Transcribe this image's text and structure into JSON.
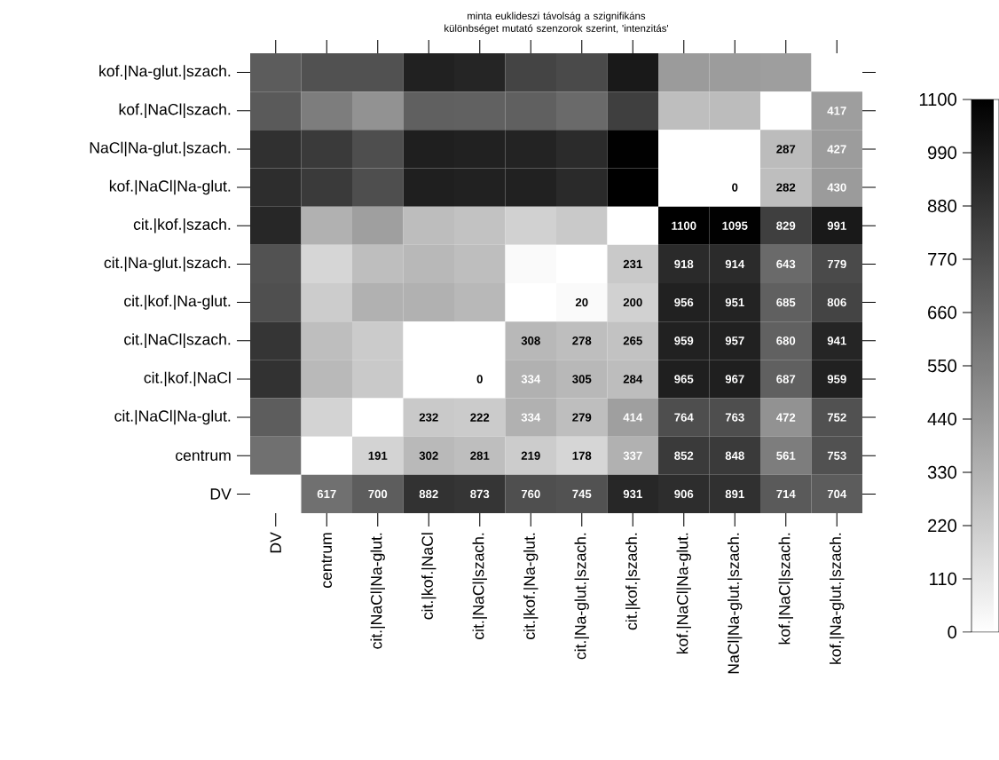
{
  "chart_data": {
    "type": "heatmap",
    "title": "minta euklideszi távolság a szignifikáns különbséget mutató szenzorok szerint, 'intenzitás'",
    "categories": [
      "DV",
      "centrum",
      "cit.|NaCl|Na-glut.",
      "cit.|kof.|NaCl",
      "cit.|NaCl|szach.",
      "cit.|kof.|Na-glut.",
      "cit.|Na-glut.|szach.",
      "cit.|kof.|szach.",
      "kof.|NaCl|Na-glut.",
      "NaCl|Na-glut.|szach.",
      "kof.|NaCl|szach.",
      "kof.|Na-glut.|szach."
    ],
    "y_categories": [
      "kof.|Na-glut.|szach.",
      "kof.|NaCl|szach.",
      "NaCl|Na-glut.|szach.",
      "kof.|NaCl|Na-glut.",
      "cit.|kof.|szach.",
      "cit.|Na-glut.|szach.",
      "cit.|kof.|Na-glut.",
      "cit.|NaCl|szach.",
      "cit.|kof.|NaCl",
      "cit.|NaCl|Na-glut.",
      "centrum",
      "DV"
    ],
    "cells": [
      [
        704,
        753,
        752,
        959,
        941,
        806,
        779,
        991,
        430,
        427,
        417,
        0
      ],
      [
        714,
        561,
        472,
        687,
        680,
        685,
        643,
        829,
        282,
        287,
        0,
        417
      ],
      [
        891,
        848,
        763,
        967,
        957,
        951,
        914,
        1095,
        0,
        0,
        287,
        427
      ],
      [
        906,
        852,
        764,
        965,
        959,
        956,
        918,
        1100,
        0,
        0,
        282,
        430
      ],
      [
        931,
        337,
        414,
        284,
        265,
        200,
        231,
        0,
        1100,
        1095,
        829,
        991
      ],
      [
        745,
        178,
        279,
        305,
        278,
        20,
        0,
        231,
        918,
        914,
        643,
        779
      ],
      [
        760,
        219,
        334,
        334,
        308,
        0,
        20,
        200,
        956,
        951,
        685,
        806
      ],
      [
        873,
        281,
        222,
        0,
        0,
        308,
        278,
        265,
        959,
        957,
        680,
        941
      ],
      [
        882,
        302,
        232,
        0,
        0,
        334,
        305,
        284,
        965,
        967,
        687,
        959
      ],
      [
        700,
        191,
        0,
        232,
        222,
        334,
        279,
        414,
        764,
        763,
        472,
        752
      ],
      [
        617,
        0,
        191,
        302,
        281,
        219,
        178,
        337,
        852,
        848,
        561,
        753
      ],
      [
        0,
        617,
        700,
        882,
        873,
        760,
        745,
        931,
        906,
        891,
        714,
        704
      ]
    ],
    "cell_labels": [
      [
        null,
        null,
        null,
        null,
        null,
        null,
        null,
        null,
        null,
        null,
        null,
        null
      ],
      [
        null,
        null,
        null,
        null,
        null,
        null,
        null,
        null,
        null,
        null,
        null,
        "417"
      ],
      [
        null,
        null,
        null,
        null,
        null,
        null,
        null,
        null,
        null,
        null,
        "287",
        "427"
      ],
      [
        null,
        null,
        null,
        null,
        null,
        null,
        null,
        null,
        null,
        "0",
        "282",
        "430"
      ],
      [
        null,
        null,
        null,
        null,
        null,
        null,
        null,
        null,
        "1100",
        "1095",
        "829",
        "991"
      ],
      [
        null,
        null,
        null,
        null,
        null,
        null,
        null,
        "231",
        "918",
        "914",
        "643",
        "779"
      ],
      [
        null,
        null,
        null,
        null,
        null,
        null,
        "20",
        "200",
        "956",
        "951",
        "685",
        "806"
      ],
      [
        null,
        null,
        null,
        null,
        null,
        "308",
        "278",
        "265",
        "959",
        "957",
        "680",
        "941"
      ],
      [
        null,
        null,
        null,
        null,
        "0",
        "334",
        "305",
        "284",
        "965",
        "967",
        "687",
        "959"
      ],
      [
        null,
        null,
        null,
        "232",
        "222",
        "334",
        "279",
        "414",
        "764",
        "763",
        "472",
        "752"
      ],
      [
        null,
        null,
        "191",
        "302",
        "281",
        "219",
        "178",
        "337",
        "852",
        "848",
        "561",
        "753"
      ],
      [
        null,
        "617",
        "700",
        "882",
        "873",
        "760",
        "745",
        "931",
        "906",
        "891",
        "714",
        "704"
      ]
    ],
    "clim": [
      0,
      1100
    ],
    "cticks": [
      0,
      110,
      220,
      330,
      440,
      550,
      660,
      770,
      880,
      990,
      1100
    ]
  }
}
